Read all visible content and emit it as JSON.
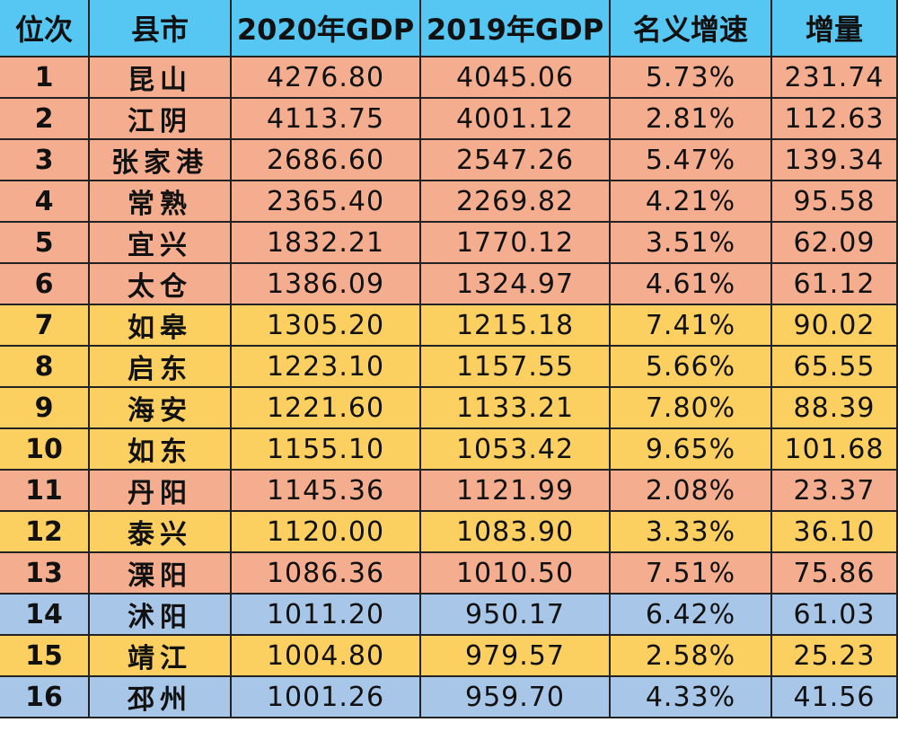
{
  "colors": {
    "header": "#56c6f2",
    "orange": "#f4ae8f",
    "yellow": "#fcd060",
    "blue": "#a8c6e8"
  },
  "table": {
    "headers": [
      "位次",
      "县市",
      "2020年GDP",
      "2019年GDP",
      "名义增速",
      "增量"
    ],
    "rows": [
      {
        "rank": "1",
        "city": "昆山",
        "gdp2020": "4276.80",
        "gdp2019": "4045.06",
        "rate": "5.73%",
        "increase": "231.74",
        "color": "orange"
      },
      {
        "rank": "2",
        "city": "江阴",
        "gdp2020": "4113.75",
        "gdp2019": "4001.12",
        "rate": "2.81%",
        "increase": "112.63",
        "color": "orange"
      },
      {
        "rank": "3",
        "city": "张家港",
        "gdp2020": "2686.60",
        "gdp2019": "2547.26",
        "rate": "5.47%",
        "increase": "139.34",
        "color": "orange"
      },
      {
        "rank": "4",
        "city": "常熟",
        "gdp2020": "2365.40",
        "gdp2019": "2269.82",
        "rate": "4.21%",
        "increase": "95.58",
        "color": "orange"
      },
      {
        "rank": "5",
        "city": "宜兴",
        "gdp2020": "1832.21",
        "gdp2019": "1770.12",
        "rate": "3.51%",
        "increase": "62.09",
        "color": "orange"
      },
      {
        "rank": "6",
        "city": "太仓",
        "gdp2020": "1386.09",
        "gdp2019": "1324.97",
        "rate": "4.61%",
        "increase": "61.12",
        "color": "orange"
      },
      {
        "rank": "7",
        "city": "如皋",
        "gdp2020": "1305.20",
        "gdp2019": "1215.18",
        "rate": "7.41%",
        "increase": "90.02",
        "color": "yellow"
      },
      {
        "rank": "8",
        "city": "启东",
        "gdp2020": "1223.10",
        "gdp2019": "1157.55",
        "rate": "5.66%",
        "increase": "65.55",
        "color": "yellow"
      },
      {
        "rank": "9",
        "city": "海安",
        "gdp2020": "1221.60",
        "gdp2019": "1133.21",
        "rate": "7.80%",
        "increase": "88.39",
        "color": "yellow"
      },
      {
        "rank": "10",
        "city": "如东",
        "gdp2020": "1155.10",
        "gdp2019": "1053.42",
        "rate": "9.65%",
        "increase": "101.68",
        "color": "yellow"
      },
      {
        "rank": "11",
        "city": "丹阳",
        "gdp2020": "1145.36",
        "gdp2019": "1121.99",
        "rate": "2.08%",
        "increase": "23.37",
        "color": "orange"
      },
      {
        "rank": "12",
        "city": "泰兴",
        "gdp2020": "1120.00",
        "gdp2019": "1083.90",
        "rate": "3.33%",
        "increase": "36.10",
        "color": "yellow"
      },
      {
        "rank": "13",
        "city": "溧阳",
        "gdp2020": "1086.36",
        "gdp2019": "1010.50",
        "rate": "7.51%",
        "increase": "75.86",
        "color": "orange"
      },
      {
        "rank": "14",
        "city": "沭阳",
        "gdp2020": "1011.20",
        "gdp2019": "950.17",
        "rate": "6.42%",
        "increase": "61.03",
        "color": "blue"
      },
      {
        "rank": "15",
        "city": "靖江",
        "gdp2020": "1004.80",
        "gdp2019": "979.57",
        "rate": "2.58%",
        "increase": "25.23",
        "color": "yellow"
      },
      {
        "rank": "16",
        "city": "邳州",
        "gdp2020": "1001.26",
        "gdp2019": "959.70",
        "rate": "4.33%",
        "increase": "41.56",
        "color": "blue"
      }
    ]
  }
}
